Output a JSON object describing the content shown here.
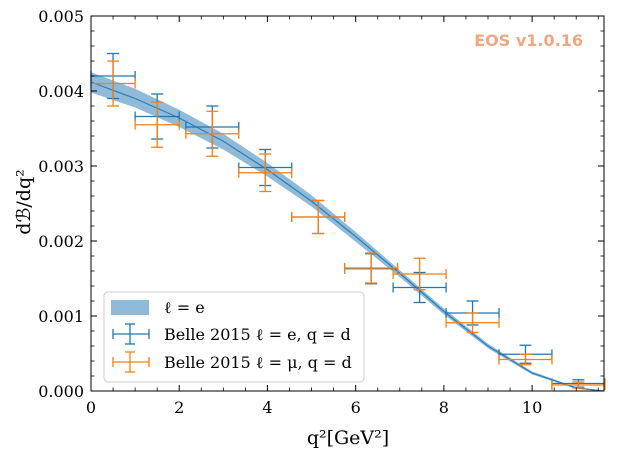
{
  "chart_data": {
    "type": "scatter",
    "xlabel": "q²[GeV²]",
    "ylabel": "dℬ/dq²",
    "xlim": [
      0,
      11.63
    ],
    "ylim": [
      0,
      0.005
    ],
    "xticks": [
      0,
      2,
      4,
      6,
      8,
      10
    ],
    "xtick_labels": [
      "0",
      "2",
      "4",
      "6",
      "8",
      "10"
    ],
    "yticks": [
      0,
      0.001,
      0.002,
      0.003,
      0.004,
      0.005
    ],
    "ytick_labels": [
      "0.000",
      "0.001",
      "0.002",
      "0.003",
      "0.004",
      "0.005"
    ],
    "watermark": "EOS v1.0.16",
    "band": {
      "name": "ℓ = e",
      "color": "#1f77b4",
      "x": [
        0,
        1,
        2,
        3,
        4,
        5,
        6,
        7,
        8,
        9,
        10,
        11,
        11.63
      ],
      "upper": [
        0.00425,
        0.00403,
        0.00375,
        0.00343,
        0.00304,
        0.00261,
        0.00212,
        0.00161,
        0.0011,
        0.00063,
        0.00026,
        5e-05,
        0.0
      ],
      "central": [
        0.00412,
        0.0039,
        0.00364,
        0.00333,
        0.00295,
        0.00253,
        0.00206,
        0.00157,
        0.00106,
        0.0006,
        0.00024,
        4e-05,
        0.0
      ],
      "lower": [
        0.00398,
        0.00378,
        0.00352,
        0.00322,
        0.00286,
        0.00246,
        0.00199,
        0.00152,
        0.00102,
        0.00057,
        0.00022,
        3e-05,
        0.0
      ]
    },
    "series": [
      {
        "name": "Belle 2015 ℓ = e, q = d",
        "color": "#1f77b4",
        "points": [
          {
            "x": 0.5,
            "xerr": 0.5,
            "y": 0.0042,
            "yerr": 0.0003
          },
          {
            "x": 1.5,
            "xerr": 0.5,
            "y": 0.00366,
            "yerr": 0.0003
          },
          {
            "x": 2.75,
            "xerr": 0.6,
            "y": 0.00352,
            "yerr": 0.00028
          },
          {
            "x": 3.95,
            "xerr": 0.6,
            "y": 0.00298,
            "yerr": 0.00024
          },
          {
            "x": 5.15,
            "xerr": 0.6,
            "y": 0.00232,
            "yerr": 0.00022
          },
          {
            "x": 6.35,
            "xerr": 0.6,
            "y": 0.00163,
            "yerr": 0.0002
          },
          {
            "x": 7.45,
            "xerr": 0.6,
            "y": 0.00138,
            "yerr": 0.0002
          },
          {
            "x": 8.65,
            "xerr": 0.6,
            "y": 0.00104,
            "yerr": 0.00016
          },
          {
            "x": 9.85,
            "xerr": 0.6,
            "y": 0.00049,
            "yerr": 0.00012
          },
          {
            "x": 11.05,
            "xerr": 0.6,
            "y": 0.0001,
            "yerr": 5e-05
          }
        ]
      },
      {
        "name": "Belle 2015 ℓ = μ, q = d",
        "color": "#ff7f0e",
        "points": [
          {
            "x": 0.5,
            "xerr": 0.5,
            "y": 0.0041,
            "yerr": 0.0003
          },
          {
            "x": 1.5,
            "xerr": 0.5,
            "y": 0.00355,
            "yerr": 0.0003
          },
          {
            "x": 2.75,
            "xerr": 0.6,
            "y": 0.00343,
            "yerr": 0.0003
          },
          {
            "x": 3.95,
            "xerr": 0.6,
            "y": 0.00291,
            "yerr": 0.00025
          },
          {
            "x": 5.15,
            "xerr": 0.6,
            "y": 0.00232,
            "yerr": 0.00022
          },
          {
            "x": 6.35,
            "xerr": 0.6,
            "y": 0.00164,
            "yerr": 0.0002
          },
          {
            "x": 7.45,
            "xerr": 0.6,
            "y": 0.00156,
            "yerr": 0.00021
          },
          {
            "x": 8.65,
            "xerr": 0.6,
            "y": 0.00091,
            "yerr": 0.00013
          },
          {
            "x": 9.85,
            "xerr": 0.6,
            "y": 0.00042,
            "yerr": 7e-05
          },
          {
            "x": 11.05,
            "xerr": 0.6,
            "y": 8e-05,
            "yerr": 4e-05
          }
        ]
      }
    ],
    "legend": {
      "position": "lower-left",
      "entries": [
        {
          "kind": "band",
          "label_prefix": "ℓ = e",
          "label": "ℓ = e"
        },
        {
          "kind": "errorbar",
          "label": "Belle 2015 ℓ = e, q = d"
        },
        {
          "kind": "errorbar",
          "label": "Belle 2015 ℓ = μ, q = d"
        }
      ]
    }
  }
}
